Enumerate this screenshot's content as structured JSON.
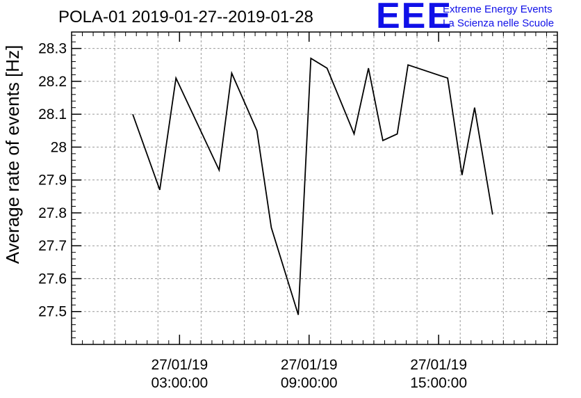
{
  "header": {
    "title": "POLA-01 2019-01-27--2019-01-28",
    "logo": "EEE",
    "logo_line1": "Extreme Energy Events",
    "logo_line2": "La Scienza nelle Scuole",
    "logo_color": "#1010e8"
  },
  "chart_data": {
    "type": "line",
    "title": "POLA-01 2019-01-27--2019-01-28",
    "ylabel": "Average rate of events [Hz]",
    "xlabel": "",
    "grid": true,
    "ylim": [
      27.4,
      28.35
    ],
    "yticks": [
      27.5,
      27.6,
      27.7,
      27.8,
      27.9,
      28,
      28.1,
      28.2,
      28.3
    ],
    "ytick_labels": [
      "27.5",
      "27.6",
      "27.7",
      "27.8",
      "27.9",
      "28",
      "28.1",
      "28.2",
      "28.3"
    ],
    "xlim": [
      "2019-01-26 22:00:00",
      "2019-01-27 20:30:00"
    ],
    "xticks": [
      {
        "value": "2019-01-27 03:00:00",
        "line1": "27/01/19",
        "line2": "03:00:00"
      },
      {
        "value": "2019-01-27 09:00:00",
        "line1": "27/01/19",
        "line2": "09:00:00"
      },
      {
        "value": "2019-01-27 15:00:00",
        "line1": "27/01/19",
        "line2": "15:00:00"
      }
    ],
    "series": [
      {
        "color": "#000000",
        "points": [
          {
            "x": "2019-01-27 00:50:00",
            "y": 28.1
          },
          {
            "x": "2019-01-27 02:05:00",
            "y": 27.87
          },
          {
            "x": "2019-01-27 02:50:00",
            "y": 28.21
          },
          {
            "x": "2019-01-27 04:50:00",
            "y": 27.93
          },
          {
            "x": "2019-01-27 05:25:00",
            "y": 28.225
          },
          {
            "x": "2019-01-27 06:35:00",
            "y": 28.05
          },
          {
            "x": "2019-01-27 07:15:00",
            "y": 27.755
          },
          {
            "x": "2019-01-27 08:30:00",
            "y": 27.49
          },
          {
            "x": "2019-01-27 09:05:00",
            "y": 28.27
          },
          {
            "x": "2019-01-27 09:50:00",
            "y": 28.24
          },
          {
            "x": "2019-01-27 11:05:00",
            "y": 28.04
          },
          {
            "x": "2019-01-27 11:45:00",
            "y": 28.24
          },
          {
            "x": "2019-01-27 12:25:00",
            "y": 28.02
          },
          {
            "x": "2019-01-27 13:05:00",
            "y": 28.04
          },
          {
            "x": "2019-01-27 13:35:00",
            "y": 28.25
          },
          {
            "x": "2019-01-27 15:25:00",
            "y": 28.21
          },
          {
            "x": "2019-01-27 16:05:00",
            "y": 27.915
          },
          {
            "x": "2019-01-27 16:40:00",
            "y": 28.12
          },
          {
            "x": "2019-01-27 17:30:00",
            "y": 27.795
          }
        ]
      }
    ]
  }
}
